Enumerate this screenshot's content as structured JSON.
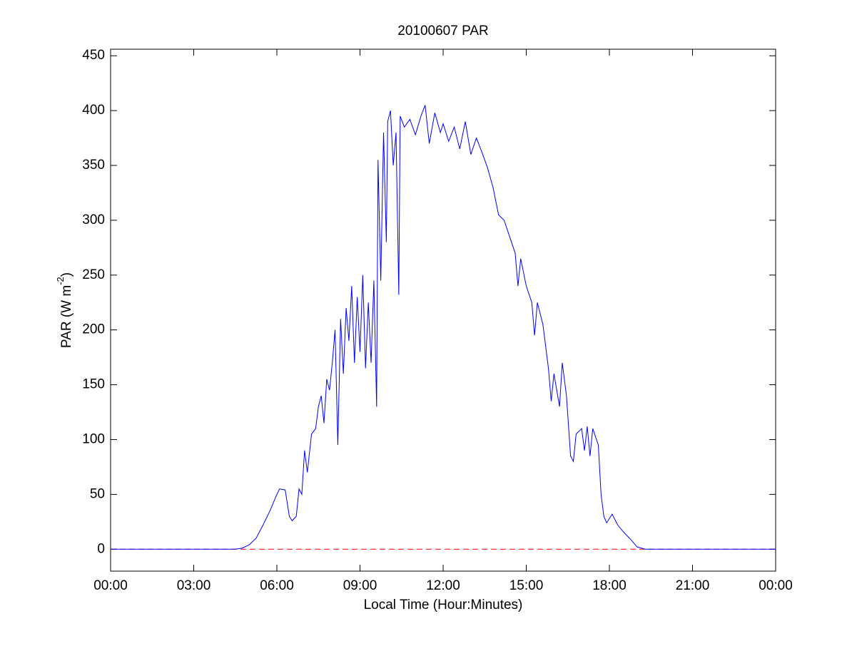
{
  "chart_data": {
    "type": "line",
    "title": "20100607 PAR",
    "xlabel": "Local Time (Hour:Minutes)",
    "ylabel": [
      "PAR (W m",
      "-2",
      ")"
    ],
    "xlim": [
      0,
      24
    ],
    "ylim": [
      -20,
      456
    ],
    "xticks": [
      {
        "value": 0,
        "label": "00:00"
      },
      {
        "value": 3,
        "label": "03:00"
      },
      {
        "value": 6,
        "label": "06:00"
      },
      {
        "value": 9,
        "label": "09:00"
      },
      {
        "value": 12,
        "label": "12:00"
      },
      {
        "value": 15,
        "label": "15:00"
      },
      {
        "value": 18,
        "label": "18:00"
      },
      {
        "value": 21,
        "label": "21:00"
      },
      {
        "value": 24,
        "label": "00:00"
      }
    ],
    "yticks": [
      0,
      50,
      100,
      150,
      200,
      250,
      300,
      350,
      400,
      450
    ],
    "grid": false,
    "hline": {
      "value": 0,
      "color": "#ff0000"
    },
    "x": [
      0,
      4.5,
      4.75,
      5,
      5.25,
      5.5,
      5.75,
      6,
      6.1,
      6.3,
      6.45,
      6.55,
      6.7,
      6.8,
      6.9,
      7.0,
      7.1,
      7.25,
      7.4,
      7.5,
      7.6,
      7.7,
      7.8,
      7.9,
      8.0,
      8.1,
      8.2,
      8.3,
      8.4,
      8.5,
      8.6,
      8.7,
      8.8,
      8.9,
      9.0,
      9.1,
      9.2,
      9.3,
      9.4,
      9.5,
      9.6,
      9.65,
      9.75,
      9.85,
      9.95,
      10.0,
      10.1,
      10.2,
      10.3,
      10.4,
      10.45,
      10.6,
      10.8,
      11.0,
      11.2,
      11.35,
      11.5,
      11.7,
      11.9,
      12.0,
      12.2,
      12.4,
      12.6,
      12.8,
      13.0,
      13.2,
      13.4,
      13.6,
      13.8,
      14.0,
      14.2,
      14.4,
      14.6,
      14.7,
      14.8,
      15.0,
      15.2,
      15.3,
      15.4,
      15.6,
      15.8,
      15.9,
      16.0,
      16.2,
      16.3,
      16.45,
      16.6,
      16.7,
      16.8,
      17.0,
      17.1,
      17.2,
      17.3,
      17.4,
      17.6,
      17.7,
      17.8,
      17.9,
      18.1,
      18.3,
      18.5,
      18.8,
      19.0,
      19.3,
      24
    ],
    "series": [
      {
        "color": "#0000ff",
        "values": [
          0,
          0,
          1,
          4,
          10,
          22,
          35,
          50,
          55,
          54,
          30,
          26,
          30,
          55,
          50,
          90,
          70,
          105,
          110,
          130,
          140,
          115,
          155,
          145,
          170,
          200,
          95,
          210,
          160,
          220,
          190,
          240,
          170,
          230,
          180,
          250,
          165,
          225,
          170,
          245,
          130,
          355,
          245,
          380,
          280,
          390,
          400,
          350,
          380,
          232,
          395,
          385,
          392,
          378,
          395,
          405,
          370,
          398,
          380,
          388,
          372,
          385,
          365,
          390,
          360,
          375,
          362,
          348,
          330,
          305,
          300,
          285,
          270,
          240,
          265,
          240,
          225,
          195,
          225,
          205,
          165,
          135,
          160,
          130,
          170,
          140,
          85,
          80,
          105,
          110,
          90,
          112,
          85,
          110,
          95,
          50,
          30,
          24,
          32,
          22,
          16,
          8,
          2,
          0,
          0
        ]
      }
    ]
  }
}
